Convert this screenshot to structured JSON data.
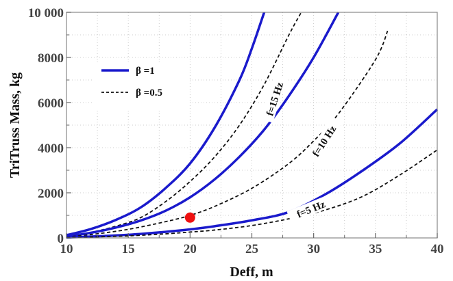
{
  "chart_data": {
    "type": "line",
    "title": "",
    "xlabel": "Deff, m",
    "ylabel": "TriTruss Mass, kg",
    "xlim": [
      10,
      40
    ],
    "ylim": [
      0,
      10000
    ],
    "x_ticks": [
      10,
      15,
      20,
      25,
      30,
      35,
      40
    ],
    "y_ticks": [
      0,
      2000,
      4000,
      6000,
      8000,
      10000
    ],
    "y_tick_labels": [
      "0",
      "2000",
      "4000",
      "6000",
      "8000",
      "10 000"
    ],
    "grid": true,
    "legend": {
      "placement": "upper-left",
      "entries": [
        {
          "label": "β =1",
          "style": "solid",
          "color": "#1a1acc"
        },
        {
          "label": "β =0.5",
          "style": "dashed",
          "color": "#111111"
        }
      ]
    },
    "series": [
      {
        "beta": "1",
        "freq": "15",
        "style": "solid",
        "x": [
          10,
          12,
          14,
          16,
          18,
          20,
          22,
          24,
          25,
          26
        ],
        "y": [
          120,
          400,
          800,
          1350,
          2200,
          3300,
          4900,
          7000,
          8400,
          10000
        ]
      },
      {
        "beta": "0.5",
        "freq": "15",
        "style": "dashed",
        "x": [
          10,
          12,
          14,
          16,
          18,
          20,
          22,
          24,
          26,
          28,
          29
        ],
        "y": [
          70,
          250,
          520,
          900,
          1600,
          2500,
          3600,
          5000,
          6800,
          9000,
          10000
        ]
      },
      {
        "beta": "1",
        "freq": "10",
        "style": "solid",
        "x": [
          10,
          12,
          14,
          16,
          18,
          20,
          22,
          24,
          26,
          28,
          30,
          32
        ],
        "y": [
          70,
          230,
          460,
          770,
          1200,
          1800,
          2600,
          3600,
          4800,
          6300,
          8000,
          10000
        ]
      },
      {
        "beta": "0.5",
        "freq": "10",
        "style": "dashed",
        "x": [
          10,
          12,
          15,
          18,
          20,
          22,
          25,
          28,
          30,
          32,
          35,
          36
        ],
        "y": [
          40,
          150,
          380,
          720,
          1000,
          1400,
          2200,
          3300,
          4300,
          5500,
          7900,
          9200
        ]
      },
      {
        "beta": "1",
        "freq": "5",
        "style": "solid",
        "x": [
          10,
          12,
          15,
          18,
          20,
          22,
          25,
          28,
          31,
          34,
          37,
          40
        ],
        "y": [
          20,
          60,
          140,
          270,
          380,
          520,
          780,
          1150,
          1950,
          3000,
          4200,
          5700
        ]
      },
      {
        "beta": "0.5",
        "freq": "5",
        "style": "dashed",
        "x": [
          10,
          12,
          15,
          18,
          20,
          22,
          25,
          28,
          31,
          34,
          37,
          40
        ],
        "y": [
          10,
          40,
          90,
          180,
          260,
          350,
          550,
          850,
          1250,
          1850,
          2800,
          3900
        ]
      }
    ],
    "annotations": [
      {
        "text": "f=15 Hz",
        "x": 26.9,
        "y": 6150,
        "angle": -72
      },
      {
        "text": "f=10 Hz",
        "x": 30.9,
        "y": 4280,
        "angle": -57
      },
      {
        "text": "f=5 Hz",
        "x": 29.8,
        "y": 1250,
        "angle": -22
      }
    ],
    "marker": {
      "x": 20,
      "y": 900,
      "color": "#ee1111"
    }
  }
}
